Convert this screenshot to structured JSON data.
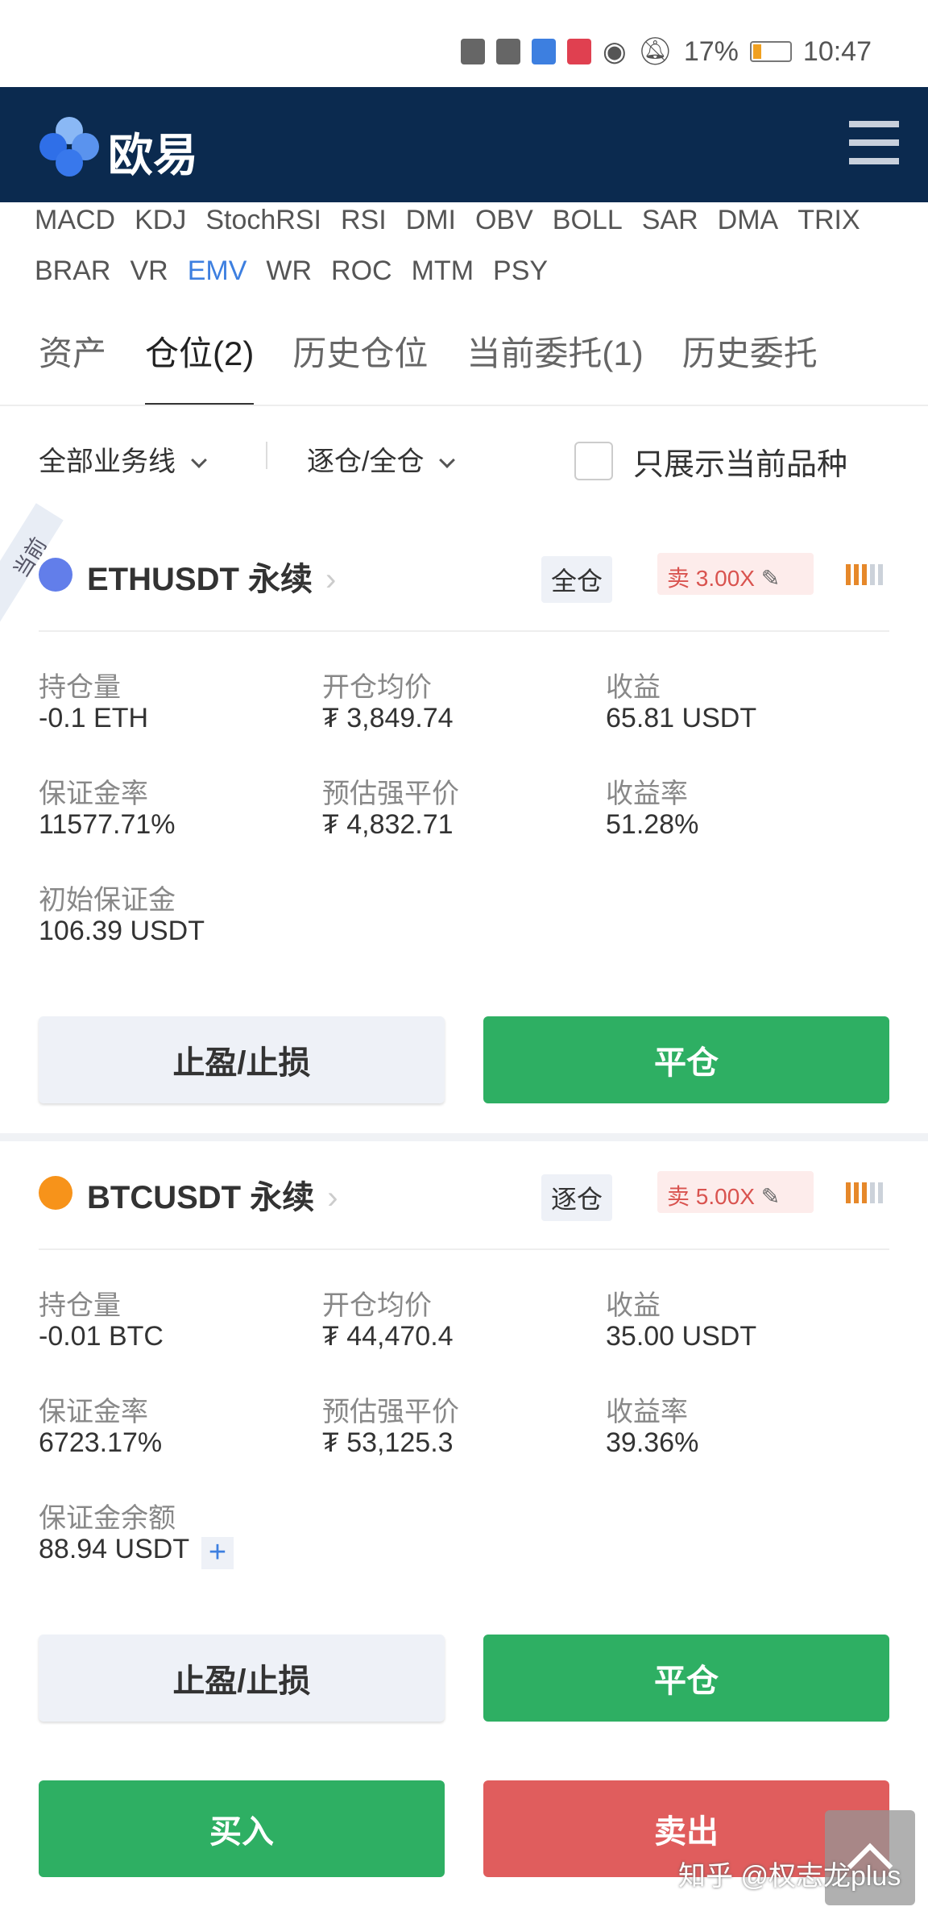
{
  "status_bar": {
    "battery": "17%",
    "time": "10:47"
  },
  "header": {
    "logo": "欧易"
  },
  "indicators": {
    "row1": [
      "MACD",
      "KDJ",
      "StochRSI",
      "RSI",
      "DMI",
      "OBV",
      "BOLL",
      "SAR",
      "DMA",
      "TRIX"
    ],
    "row2": [
      "BRAR",
      "VR",
      "EMV",
      "WR",
      "ROC",
      "MTM",
      "PSY"
    ],
    "active": "EMV"
  },
  "tabs": [
    "资产",
    "仓位(2)",
    "历史仓位",
    "当前委托(1)",
    "历史委托"
  ],
  "filters": {
    "business": "全部业务线",
    "margin": "逐仓/全仓",
    "only_current": "只展示当前品种"
  },
  "positions": [
    {
      "badge": "当前",
      "symbol": "ETHUSDT 永续",
      "mode": "全仓",
      "side": "卖 3.00X",
      "coin_color": "#627eea",
      "fields": [
        [
          "持仓量",
          "-0.1 ETH"
        ],
        [
          "开仓均价",
          "₮ 3,849.74"
        ],
        [
          "收益",
          "65.81 USDT"
        ],
        [
          "保证金率",
          "11577.71%"
        ],
        [
          "预估强平价",
          "₮ 4,832.71"
        ],
        [
          "收益率",
          "51.28%"
        ],
        [
          "初始保证金",
          "106.39 USDT"
        ]
      ],
      "tp_sl": "止盈/止损",
      "close": "平仓"
    },
    {
      "symbol": "BTCUSDT 永续",
      "mode": "逐仓",
      "side": "卖 5.00X",
      "coin_color": "#f7931a",
      "fields": [
        [
          "持仓量",
          "-0.01 BTC"
        ],
        [
          "开仓均价",
          "₮ 44,470.4"
        ],
        [
          "收益",
          "35.00 USDT"
        ],
        [
          "保证金率",
          "6723.17%"
        ],
        [
          "预估强平价",
          "₮ 53,125.3"
        ],
        [
          "收益率",
          "39.36%"
        ],
        [
          "保证金余额",
          "88.94 USDT"
        ]
      ],
      "add_margin": "+",
      "tp_sl": "止盈/止损",
      "close": "平仓"
    }
  ],
  "actions": {
    "buy": "买入",
    "sell": "卖出"
  },
  "watermark": "知乎 @权志龙plus",
  "colors": {
    "header": "#0b2a4f",
    "green": "#2eaf63",
    "red": "#e05d5d",
    "accent": "#3d7fe0"
  }
}
